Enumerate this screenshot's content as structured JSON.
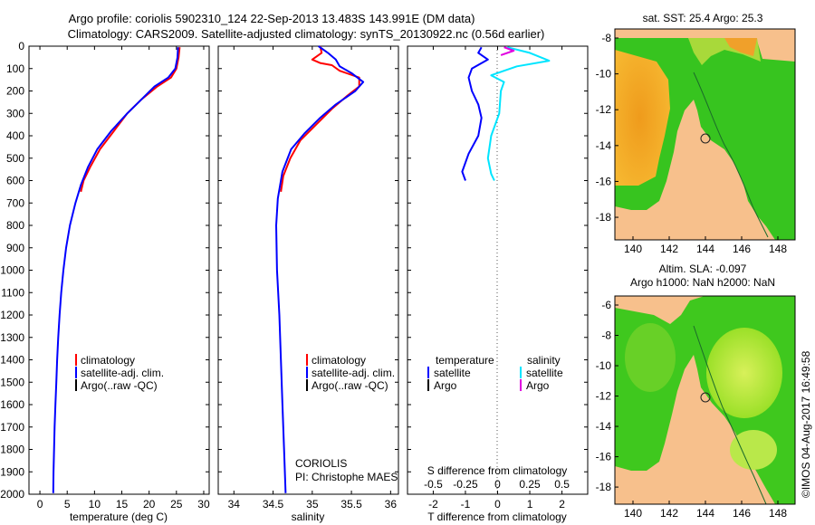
{
  "header": {
    "line1": "Argo profile: coriolis 5902310_124 22-Sep-2013 13.483S 143.991E (DM data)",
    "line2": "Climatology: CARS2009. Satellite-adjusted climatology: synTS_20130922.nc (0.56d earlier)"
  },
  "colors": {
    "climatology": "#ff0000",
    "satellite": "#0000ff",
    "argo": "#000000",
    "salinity_satellite": "#00e5ff",
    "salinity_argo": "#e000e0",
    "land": "#f7c08c",
    "ocean_warm": "#f2a92c",
    "ocean_green": "#36c21e"
  },
  "chart_data": [
    {
      "id": "temperature",
      "type": "line",
      "xlabel": "temperature (deg C)",
      "xlim": [
        -2,
        31
      ],
      "xticks": [
        0,
        5,
        10,
        15,
        20,
        25,
        30
      ],
      "ylim": [
        2000,
        0
      ],
      "yticks": [
        0,
        100,
        200,
        300,
        400,
        500,
        600,
        700,
        800,
        900,
        1000,
        1100,
        1200,
        1300,
        1400,
        1500,
        1600,
        1700,
        1800,
        1900,
        2000
      ],
      "legend": [
        "climatology",
        "satellite-adj. clim.",
        "Argo(..raw -QC)"
      ],
      "series": [
        {
          "name": "climatology",
          "color_key": "climatology",
          "points": [
            [
              25.6,
              5
            ],
            [
              25.4,
              50
            ],
            [
              25.0,
              100
            ],
            [
              24.0,
              140
            ],
            [
              21.5,
              180
            ],
            [
              18.5,
              240
            ],
            [
              16.0,
              300
            ],
            [
              13.5,
              380
            ],
            [
              11.0,
              460
            ],
            [
              9.2,
              540
            ],
            [
              8.0,
              600
            ],
            [
              7.5,
              650
            ]
          ]
        },
        {
          "name": "satellite-adj. clim.",
          "color_key": "satellite",
          "points": [
            [
              25.3,
              5
            ],
            [
              25.2,
              50
            ],
            [
              24.8,
              100
            ],
            [
              23.5,
              140
            ],
            [
              21.0,
              180
            ],
            [
              18.5,
              240
            ],
            [
              16.0,
              300
            ],
            [
              13.0,
              380
            ],
            [
              10.5,
              460
            ],
            [
              8.8,
              540
            ],
            [
              7.5,
              620
            ],
            [
              6.5,
              700
            ],
            [
              5.5,
              800
            ],
            [
              4.8,
              900
            ],
            [
              4.3,
              1000
            ],
            [
              3.9,
              1100
            ],
            [
              3.6,
              1200
            ],
            [
              3.35,
              1300
            ],
            [
              3.15,
              1400
            ],
            [
              3.0,
              1500
            ],
            [
              2.85,
              1600
            ],
            [
              2.7,
              1700
            ],
            [
              2.6,
              1800
            ],
            [
              2.5,
              1900
            ],
            [
              2.45,
              1995
            ]
          ]
        }
      ]
    },
    {
      "id": "salinity",
      "type": "line",
      "xlabel": "salinity",
      "xlim": [
        33.8,
        36.1
      ],
      "xticks": [
        34,
        34.5,
        35,
        35.5,
        36
      ],
      "xtick_labels": [
        "34",
        "34.5",
        "35",
        "35.5",
        "36"
      ],
      "ylim": [
        2000,
        0
      ],
      "legend": [
        "climatology",
        "satellite-adj. clim.",
        "Argo(..raw -QC)"
      ],
      "annotations": [
        "CORIOLIS",
        "PI: Christophe MAES"
      ],
      "series": [
        {
          "name": "climatology",
          "color_key": "climatology",
          "points": [
            [
              35.1,
              0
            ],
            [
              35.12,
              30
            ],
            [
              35.0,
              60
            ],
            [
              35.1,
              75
            ],
            [
              35.25,
              85
            ],
            [
              35.35,
              110
            ],
            [
              35.6,
              140
            ],
            [
              35.6,
              180
            ],
            [
              35.45,
              220
            ],
            [
              35.25,
              280
            ],
            [
              35.05,
              350
            ],
            [
              34.85,
              420
            ],
            [
              34.72,
              500
            ],
            [
              34.63,
              580
            ],
            [
              34.6,
              650
            ]
          ]
        },
        {
          "name": "satellite-adj. clim.",
          "color_key": "satellite",
          "points": [
            [
              35.08,
              0
            ],
            [
              35.2,
              30
            ],
            [
              35.3,
              60
            ],
            [
              35.35,
              90
            ],
            [
              35.5,
              120
            ],
            [
              35.65,
              160
            ],
            [
              35.55,
              200
            ],
            [
              35.3,
              260
            ],
            [
              35.1,
              320
            ],
            [
              34.9,
              390
            ],
            [
              34.73,
              460
            ],
            [
              34.62,
              560
            ],
            [
              34.56,
              680
            ],
            [
              34.54,
              800
            ],
            [
              34.55,
              1000
            ],
            [
              34.58,
              1200
            ],
            [
              34.6,
              1400
            ],
            [
              34.62,
              1600
            ],
            [
              34.64,
              1800
            ],
            [
              34.66,
              1995
            ]
          ]
        }
      ]
    },
    {
      "id": "difference",
      "type": "line",
      "xlabel": "T difference from climatology",
      "xlabel_top": "S difference from climatology",
      "xlim": [
        -2.8,
        2.8
      ],
      "xticks": [
        -2,
        -1,
        0,
        1,
        2
      ],
      "xticks_top": [
        -2,
        -1,
        0,
        1,
        2
      ],
      "xtick_labels_top": [
        "-0.5",
        "-0.25",
        "0",
        "0.25",
        "0.5"
      ],
      "ylim": [
        2000,
        0
      ],
      "legend_titles": [
        "temperature",
        "salinity"
      ],
      "legend": [
        "satellite",
        "Argo",
        "satellite",
        "Argo"
      ],
      "series": [
        {
          "name": "T satellite",
          "color_key": "satellite",
          "points": [
            [
              -0.5,
              5
            ],
            [
              -0.6,
              30
            ],
            [
              -0.3,
              60
            ],
            [
              -0.8,
              100
            ],
            [
              -0.9,
              140
            ],
            [
              -0.8,
              200
            ],
            [
              -0.6,
              260
            ],
            [
              -0.5,
              320
            ],
            [
              -0.6,
              400
            ],
            [
              -0.9,
              480
            ],
            [
              -1.1,
              560
            ],
            [
              -1.0,
              600
            ]
          ]
        },
        {
          "name": "S satellite",
          "color_key": "salinity_satellite",
          "points": [
            [
              0.3,
              5
            ],
            [
              1.0,
              30
            ],
            [
              1.6,
              65
            ],
            [
              0.6,
              90
            ],
            [
              0.2,
              110
            ],
            [
              -0.2,
              130
            ],
            [
              0.2,
              160
            ],
            [
              0.1,
              200
            ],
            [
              0.05,
              300
            ],
            [
              -0.2,
              400
            ],
            [
              -0.3,
              500
            ],
            [
              -0.2,
              570
            ],
            [
              -0.1,
              600
            ]
          ]
        },
        {
          "name": "S Argo",
          "color_key": "salinity_argo",
          "points": [
            [
              0.2,
              5
            ],
            [
              0.5,
              20
            ],
            [
              0.1,
              40
            ]
          ]
        }
      ]
    }
  ],
  "maps": {
    "sst": {
      "title": "sat. SST: 25.4  Argo: 25.3",
      "xticks": [
        "140",
        "142",
        "144",
        "146",
        "148"
      ],
      "yticks": [
        "-8",
        "-10",
        "-12",
        "-14",
        "-16",
        "-18"
      ]
    },
    "sla": {
      "title1": "Altim. SLA: -0.097",
      "title2": "Argo h1000: NaN h2000: NaN",
      "xticks": [
        "140",
        "142",
        "144",
        "146",
        "148"
      ],
      "yticks": [
        "-6",
        "-8",
        "-10",
        "-12",
        "-14",
        "-16",
        "-18"
      ]
    }
  },
  "footer": {
    "credit": "©IMOS 04-Aug-2017 16:49:58"
  }
}
